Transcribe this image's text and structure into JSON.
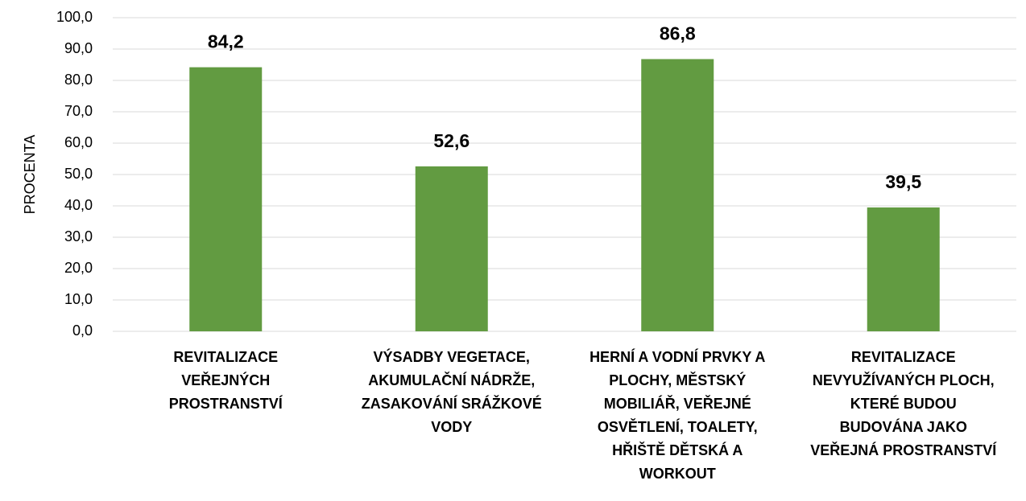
{
  "chart_data": {
    "type": "bar",
    "y_label": "PROCENTA",
    "categories": [
      "REVITALIZACE\nVEŘEJNÝCH\nPROSTRANSTVÍ",
      "VÝSADBY VEGETACE,\nAKUMULAČNÍ NÁDRŽE,\nZASAKOVÁNÍ SRÁŽKOVÉ\nVODY",
      "HERNÍ A VODNÍ PRVKY A\nPLOCHY, MĚSTSKÝ\nMOBILIÁŘ, VEŘEJNÉ\nOSVĚTLENÍ, TOALETY,\nHŘIŠTĚ DĚTSKÁ A\nWORKOUT",
      "REVITALIZACE\nNEVYUŽÍVANÝCH PLOCH,\nKTERÉ BUDOU\nBUDOVÁNA JAKO\nVEŘEJNÁ PROSTRANSTVÍ"
    ],
    "values": [
      84.2,
      52.6,
      86.8,
      39.5
    ],
    "value_labels": [
      "84,2",
      "52,6",
      "86,8",
      "39,5"
    ],
    "color": "#629b41",
    "ylim": [
      0,
      100
    ],
    "yticks": [
      {
        "value": 0,
        "label": "0,0"
      },
      {
        "value": 10,
        "label": "10,0"
      },
      {
        "value": 20,
        "label": "20,0"
      },
      {
        "value": 30,
        "label": "30,0"
      },
      {
        "value": 40,
        "label": "40,0"
      },
      {
        "value": 50,
        "label": "50,0"
      },
      {
        "value": 60,
        "label": "60,0"
      },
      {
        "value": 70,
        "label": "70,0"
      },
      {
        "value": 80,
        "label": "80,0"
      },
      {
        "value": 90,
        "label": "90,0"
      },
      {
        "value": 100,
        "label": "100,0"
      }
    ],
    "grid": true
  }
}
